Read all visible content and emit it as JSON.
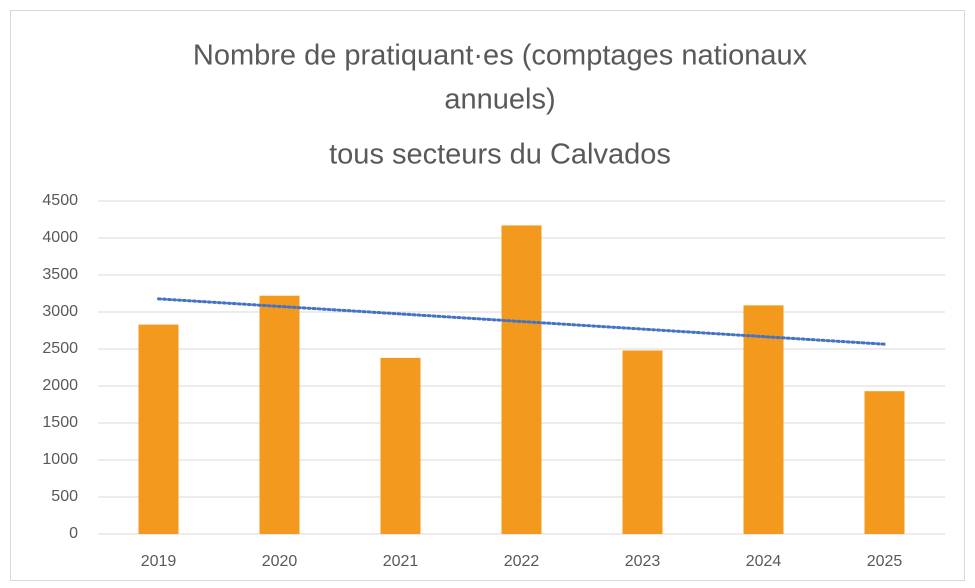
{
  "chart_data": {
    "type": "bar",
    "title": [
      "Nombre de pratiquant·es (comptages nationaux",
      "annuels)",
      "tous secteurs du Calvados"
    ],
    "categories": [
      "2019",
      "2020",
      "2021",
      "2022",
      "2023",
      "2024",
      "2025"
    ],
    "values": [
      2830,
      3220,
      2380,
      4170,
      2480,
      3090,
      1930
    ],
    "color": "#f39a1e",
    "ylim": [
      0,
      4500
    ],
    "yticks": [
      0,
      500,
      1000,
      1500,
      2000,
      2500,
      3000,
      3500,
      4000,
      4500
    ],
    "grid": true,
    "trendline": {
      "type": "linear",
      "color": "#4472c4"
    }
  }
}
